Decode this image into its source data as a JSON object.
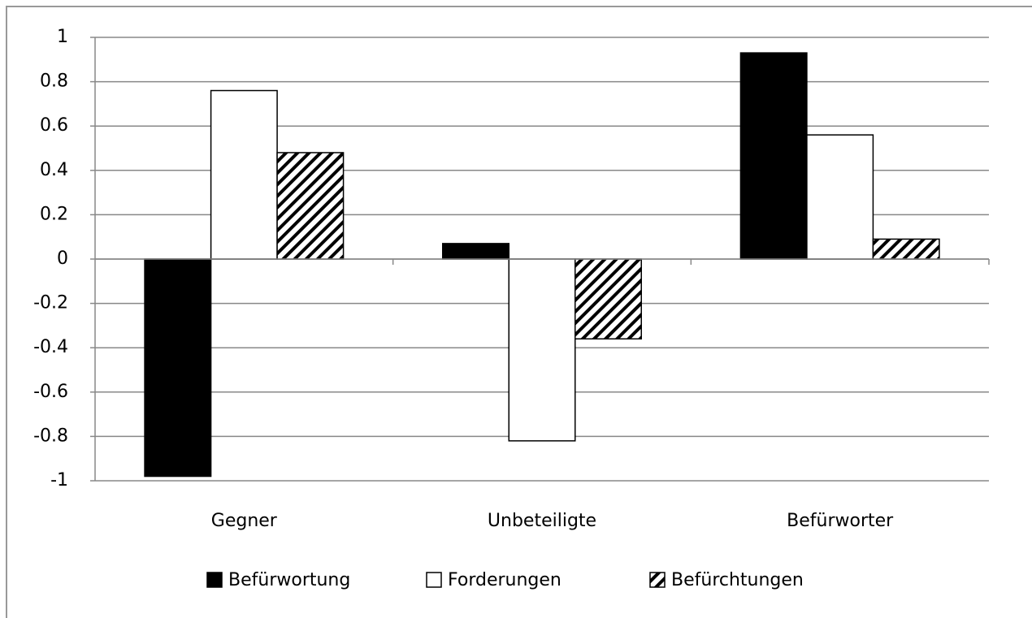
{
  "chart_data": {
    "type": "bar",
    "categories": [
      "Gegner",
      "Unbeteiligte",
      "Befürworter"
    ],
    "series": [
      {
        "name": "Befürwortung",
        "color": "#000000",
        "values": [
          -0.98,
          0.07,
          0.93
        ]
      },
      {
        "name": "Forderungen",
        "color": "#ffffff",
        "values": [
          0.76,
          -0.82,
          0.56
        ]
      },
      {
        "name": "Befürchtungen",
        "color": "#000000",
        "hatch": true,
        "values": [
          0.48,
          -0.36,
          0.09
        ]
      }
    ],
    "ylim": [
      -1,
      1
    ],
    "yticks": [
      -1,
      -0.8,
      -0.6,
      -0.4,
      -0.2,
      0,
      0.2,
      0.4,
      0.6,
      0.8,
      1
    ],
    "grid": true,
    "legend": "bottom"
  }
}
